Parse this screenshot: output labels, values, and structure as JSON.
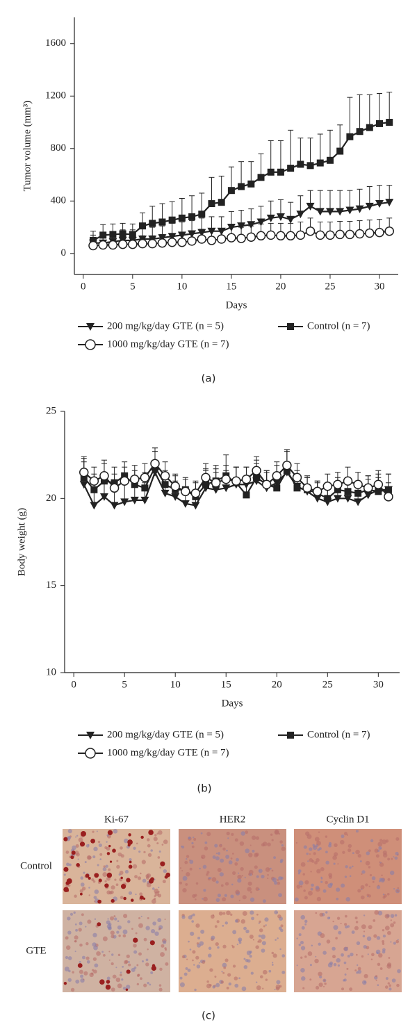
{
  "chart_data": [
    {
      "type": "line",
      "panel_label": "(a)",
      "x_label": "Days",
      "y_label": "Tumor volume (mm³)",
      "xlim": [
        -0.9,
        31.9
      ],
      "ylim": [
        -160,
        1800
      ],
      "xticks": [
        0,
        5,
        10,
        15,
        20,
        25,
        30
      ],
      "yticks": [
        0,
        400,
        800,
        1200,
        1600
      ],
      "x": [
        1,
        2,
        3,
        4,
        5,
        6,
        7,
        8,
        9,
        10,
        11,
        12,
        13,
        14,
        15,
        16,
        17,
        18,
        19,
        20,
        21,
        22,
        23,
        24,
        25,
        26,
        27,
        28,
        29,
        30,
        31
      ],
      "series": [
        {
          "name": "Control (n = 7)",
          "marker": "square",
          "color": "#222222",
          "values": [
            100,
            140,
            145,
            150,
            145,
            210,
            230,
            240,
            255,
            270,
            280,
            300,
            380,
            390,
            480,
            510,
            530,
            580,
            620,
            620,
            650,
            680,
            670,
            690,
            710,
            780,
            890,
            930,
            960,
            990,
            1000
          ],
          "errors": [
            70,
            80,
            80,
            80,
            80,
            100,
            130,
            140,
            140,
            150,
            160,
            160,
            200,
            200,
            180,
            190,
            170,
            180,
            240,
            240,
            290,
            200,
            210,
            220,
            230,
            200,
            300,
            280,
            250,
            230,
            230
          ]
        },
        {
          "name": "200 mg/kg/day GTE (n = 5)",
          "marker": "triangle-down",
          "color": "#222222",
          "values": [
            80,
            80,
            90,
            100,
            100,
            110,
            110,
            120,
            130,
            140,
            150,
            160,
            170,
            170,
            200,
            210,
            220,
            240,
            270,
            280,
            260,
            300,
            360,
            320,
            320,
            320,
            330,
            340,
            360,
            380,
            390
          ],
          "errors": [
            60,
            70,
            70,
            80,
            80,
            90,
            90,
            90,
            100,
            100,
            100,
            110,
            110,
            110,
            120,
            120,
            120,
            120,
            130,
            130,
            130,
            140,
            120,
            160,
            160,
            160,
            150,
            150,
            150,
            140,
            130
          ]
        },
        {
          "name": "1000 mg/kg/day GTE (n = 7)",
          "marker": "circle",
          "color": "#222222",
          "values": [
            60,
            65,
            65,
            70,
            70,
            75,
            75,
            80,
            85,
            85,
            95,
            110,
            100,
            110,
            120,
            115,
            125,
            135,
            140,
            135,
            135,
            140,
            170,
            140,
            140,
            145,
            145,
            150,
            155,
            160,
            170
          ],
          "errors": [
            50,
            55,
            55,
            60,
            60,
            60,
            60,
            65,
            65,
            70,
            70,
            75,
            80,
            80,
            80,
            85,
            85,
            90,
            90,
            95,
            95,
            100,
            100,
            100,
            100,
            100,
            100,
            100,
            100,
            100,
            100
          ]
        }
      ]
    },
    {
      "type": "line",
      "panel_label": "(b)",
      "x_label": "Days",
      "y_label": "Body weight (g)",
      "xlim": [
        -0.9,
        32.1
      ],
      "ylim": [
        10,
        25
      ],
      "xticks": [
        0,
        5,
        10,
        15,
        20,
        25,
        30
      ],
      "yticks": [
        10,
        15,
        20,
        25
      ],
      "x": [
        1,
        2,
        3,
        4,
        5,
        6,
        7,
        8,
        9,
        10,
        11,
        12,
        13,
        14,
        15,
        16,
        17,
        18,
        19,
        20,
        21,
        22,
        23,
        24,
        25,
        26,
        27,
        28,
        29,
        30,
        31
      ],
      "series": [
        {
          "name": "Control (n = 7)",
          "marker": "square",
          "color": "#222222",
          "values": [
            21.2,
            20.5,
            21.0,
            20.9,
            21.3,
            20.8,
            20.6,
            21.8,
            20.8,
            20.5,
            20.5,
            20.1,
            20.8,
            21.0,
            21.3,
            20.9,
            20.2,
            21.2,
            20.8,
            20.6,
            21.6,
            20.6,
            20.5,
            20.3,
            20.0,
            20.5,
            20.4,
            20.3,
            20.5,
            20.4,
            20.5
          ],
          "errors": [
            1.2,
            0.9,
            1.0,
            0.9,
            0.8,
            0.8,
            0.9,
            1.1,
            0.8,
            0.8,
            0.7,
            0.8,
            0.9,
            0.9,
            1.2,
            0.9,
            0.9,
            1.0,
            0.8,
            0.9,
            1.2,
            0.8,
            0.7,
            0.7,
            0.8,
            0.7,
            0.8,
            0.7,
            0.8,
            0.8,
            0.9
          ]
        },
        {
          "name": "200 mg/kg/day GTE (n = 5)",
          "marker": "triangle-down",
          "color": "#222222",
          "values": [
            20.8,
            19.6,
            20.1,
            19.6,
            19.8,
            19.9,
            19.9,
            21.5,
            20.3,
            20.1,
            19.7,
            19.6,
            20.6,
            20.5,
            20.6,
            20.8,
            20.8,
            21.0,
            20.6,
            20.9,
            21.5,
            20.7,
            20.4,
            20.0,
            19.8,
            20.0,
            20.0,
            19.8,
            20.2,
            20.5,
            20.5
          ],
          "errors": [
            1.3,
            1.0,
            1.0,
            1.0,
            1.0,
            0.9,
            1.0,
            1.2,
            1.0,
            0.9,
            0.9,
            0.9,
            1.0,
            1.0,
            1.0,
            1.0,
            1.0,
            1.0,
            1.0,
            1.0,
            1.2,
            0.9,
            0.9,
            0.9,
            0.9,
            0.9,
            0.9,
            0.9,
            0.9,
            0.9,
            0.9
          ]
        },
        {
          "name": "1000 mg/kg/day GTE (n = 7)",
          "marker": "circle",
          "color": "#222222",
          "values": [
            21.5,
            21.0,
            21.3,
            20.6,
            21.0,
            21.1,
            21.2,
            22.0,
            21.3,
            20.7,
            20.4,
            20.3,
            21.2,
            20.9,
            21.1,
            21.0,
            21.1,
            21.6,
            20.8,
            21.3,
            21.9,
            21.2,
            20.6,
            20.4,
            20.7,
            20.8,
            21.0,
            20.8,
            20.6,
            20.8,
            20.1
          ],
          "errors": [
            0.8,
            0.8,
            0.9,
            0.8,
            0.8,
            0.8,
            0.8,
            0.9,
            0.8,
            0.7,
            0.7,
            0.7,
            0.8,
            0.8,
            0.8,
            0.8,
            0.7,
            0.8,
            0.7,
            0.8,
            0.9,
            0.8,
            0.6,
            0.6,
            0.7,
            0.7,
            0.8,
            0.7,
            0.7,
            0.8,
            0.8
          ]
        }
      ]
    }
  ],
  "panel_c": {
    "columns": [
      "Ki-67",
      "HER2",
      "Cyclin D1"
    ],
    "rows": [
      "Control",
      "GTE"
    ],
    "panel_label": "(c)"
  }
}
